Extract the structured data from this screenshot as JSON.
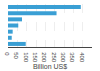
{
  "chart_data": {
    "type": "bar",
    "orientation": "horizontal",
    "categories": [
      null,
      null,
      null,
      null,
      null,
      null,
      null
    ],
    "values": [
      390,
      260,
      75,
      55,
      25,
      20,
      95
    ],
    "color": "#3a9fd4",
    "xlabel": "Billion US$",
    "xlim": [
      0,
      450
    ],
    "xticks": [
      0,
      50,
      100,
      150,
      200,
      250,
      300,
      350,
      400
    ],
    "grid": true,
    "tick_labels": "x"
  }
}
